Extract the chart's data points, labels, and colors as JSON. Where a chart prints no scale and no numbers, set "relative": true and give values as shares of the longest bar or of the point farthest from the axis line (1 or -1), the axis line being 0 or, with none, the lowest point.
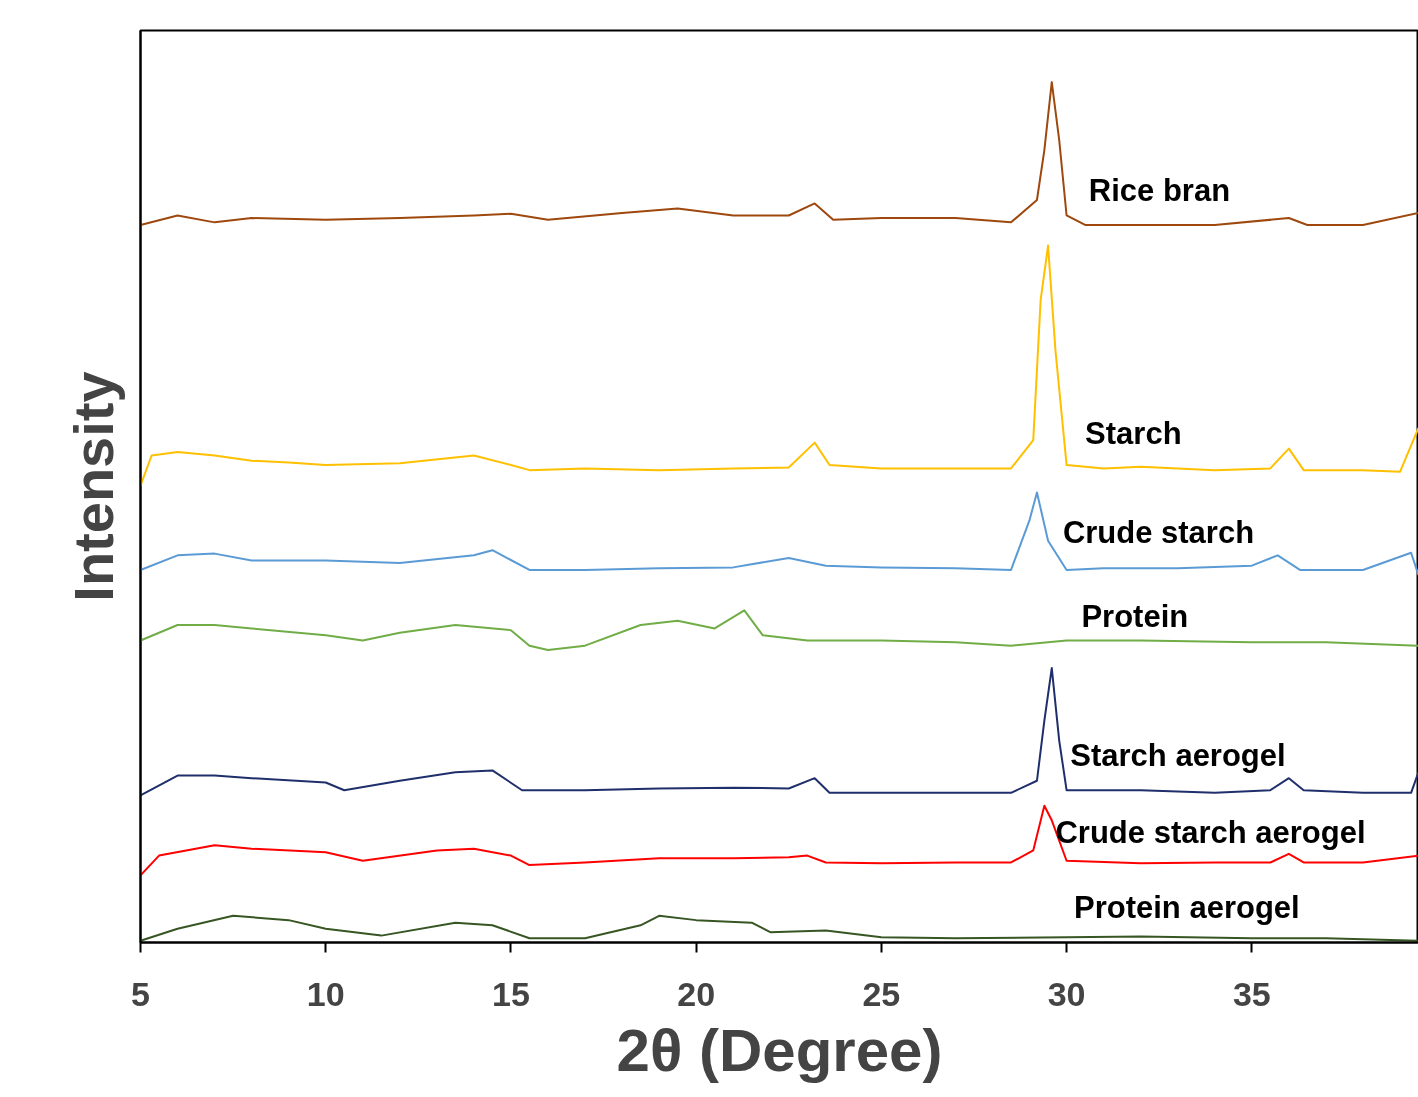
{
  "chart_data": {
    "type": "line",
    "relative": true,
    "xlabel": "2θ (Degree)",
    "ylabel": "Intensity",
    "xlim": [
      5,
      39.5
    ],
    "xticks": [
      5,
      10,
      15,
      20,
      25,
      30,
      35
    ],
    "grid": false,
    "marker": "none",
    "line_style": "solid",
    "series": [
      {
        "name": "Rice bran",
        "color": "#9e480e",
        "x": [
          5,
          6,
          7,
          8,
          10,
          12,
          14,
          15,
          16,
          18,
          19.5,
          21,
          22.5,
          23.2,
          23.7,
          25,
          27,
          28.5,
          29.2,
          29.4,
          29.6,
          29.8,
          30,
          30.5,
          32,
          34,
          36,
          36.5,
          38,
          39.5
        ],
        "values": [
          0.834,
          0.845,
          0.837,
          0.842,
          0.84,
          0.842,
          0.845,
          0.847,
          0.84,
          0.848,
          0.853,
          0.845,
          0.845,
          0.859,
          0.84,
          0.842,
          0.842,
          0.837,
          0.863,
          0.921,
          1,
          0.933,
          0.845,
          0.834,
          0.834,
          0.834,
          0.842,
          0.834,
          0.834,
          0.848
        ]
      },
      {
        "name": "Starch",
        "color": "#ffc000",
        "x": [
          5,
          5.3,
          6,
          7,
          8,
          9,
          10,
          12,
          14,
          15,
          15.5,
          17,
          19,
          21,
          22.5,
          23.2,
          23.6,
          25,
          27,
          28.5,
          29.1,
          29.3,
          29.5,
          29.7,
          30,
          31,
          32,
          34,
          35.5,
          36,
          36.4,
          38,
          39,
          39.5
        ],
        "values": [
          0.531,
          0.566,
          0.57,
          0.566,
          0.56,
          0.558,
          0.555,
          0.557,
          0.566,
          0.555,
          0.549,
          0.551,
          0.549,
          0.551,
          0.552,
          0.581,
          0.555,
          0.551,
          0.551,
          0.551,
          0.584,
          0.747,
          0.81,
          0.688,
          0.555,
          0.551,
          0.553,
          0.549,
          0.551,
          0.574,
          0.549,
          0.549,
          0.547,
          0.598
        ]
      },
      {
        "name": "Crude starch",
        "color": "#5b9bd5",
        "x": [
          5,
          6,
          7,
          8,
          10,
          12,
          14,
          14.5,
          15.5,
          17,
          19,
          21,
          22.5,
          23.5,
          25,
          27,
          28.5,
          29,
          29.2,
          29.5,
          30,
          31,
          33,
          35,
          35.7,
          36.3,
          38,
          39.3,
          39.5
        ],
        "values": [
          0.433,
          0.45,
          0.452,
          0.444,
          0.444,
          0.441,
          0.45,
          0.456,
          0.433,
          0.433,
          0.435,
          0.436,
          0.447,
          0.438,
          0.436,
          0.435,
          0.433,
          0.491,
          0.523,
          0.467,
          0.433,
          0.435,
          0.435,
          0.438,
          0.45,
          0.433,
          0.433,
          0.453,
          0.427
        ]
      },
      {
        "name": "Protein",
        "color": "#70ad47",
        "x": [
          5,
          6,
          7,
          8,
          10,
          11,
          12,
          13.5,
          15,
          15.5,
          16,
          17,
          18.5,
          19.5,
          20.5,
          21.3,
          21.8,
          23,
          25,
          27,
          28.5,
          30,
          32,
          35,
          37,
          39.5
        ],
        "values": [
          0.351,
          0.369,
          0.369,
          0.365,
          0.357,
          0.351,
          0.36,
          0.369,
          0.363,
          0.345,
          0.34,
          0.345,
          0.369,
          0.374,
          0.365,
          0.386,
          0.357,
          0.351,
          0.351,
          0.349,
          0.345,
          0.351,
          0.351,
          0.349,
          0.349,
          0.345
        ]
      },
      {
        "name": "Starch aerogel",
        "color": "#1f2f6b",
        "x": [
          5,
          6,
          7,
          8,
          10,
          10.5,
          12,
          13.5,
          14.5,
          15.3,
          17,
          19,
          21,
          22.5,
          23.2,
          23.6,
          25,
          27,
          28.5,
          29.2,
          29.4,
          29.6,
          29.8,
          30,
          32,
          34,
          35.5,
          36,
          36.4,
          38,
          39.3,
          39.5
        ],
        "values": [
          0.171,
          0.194,
          0.194,
          0.191,
          0.186,
          0.177,
          0.188,
          0.198,
          0.2,
          0.177,
          0.177,
          0.179,
          0.18,
          0.179,
          0.191,
          0.174,
          0.174,
          0.174,
          0.174,
          0.188,
          0.258,
          0.319,
          0.235,
          0.177,
          0.177,
          0.174,
          0.177,
          0.191,
          0.177,
          0.174,
          0.174,
          0.198
        ]
      },
      {
        "name": "Crude starch aerogel",
        "color": "#ff0000",
        "x": [
          5,
          5.5,
          7,
          8,
          10,
          11,
          13,
          14,
          15,
          15.5,
          17,
          19,
          21,
          22.5,
          23,
          23.5,
          25,
          27,
          28.5,
          29.1,
          29.4,
          29.6,
          30,
          32,
          34,
          35.5,
          36,
          36.4,
          38,
          39.5
        ],
        "values": [
          0.078,
          0.101,
          0.113,
          0.109,
          0.105,
          0.095,
          0.107,
          0.109,
          0.101,
          0.09,
          0.093,
          0.098,
          0.098,
          0.099,
          0.101,
          0.093,
          0.092,
          0.093,
          0.093,
          0.107,
          0.159,
          0.142,
          0.095,
          0.092,
          0.093,
          0.093,
          0.103,
          0.093,
          0.093,
          0.101
        ]
      },
      {
        "name": "Protein aerogel",
        "color": "#375623",
        "x": [
          5,
          6,
          7.5,
          9,
          10,
          11.5,
          13.5,
          14.5,
          15.5,
          17,
          18.5,
          19,
          20,
          21.5,
          22,
          23.5,
          25,
          27,
          30,
          32,
          35,
          37,
          39.5
        ],
        "values": [
          0.002,
          0.016,
          0.031,
          0.026,
          0.016,
          0.008,
          0.023,
          0.02,
          0.005,
          0.005,
          0.02,
          0.031,
          0.026,
          0.023,
          0.012,
          0.014,
          0.006,
          0.005,
          0.006,
          0.007,
          0.005,
          0.005,
          0.002
        ]
      }
    ]
  }
}
